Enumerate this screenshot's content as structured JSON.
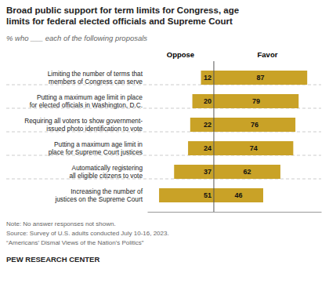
{
  "chart_data": {
    "type": "bar",
    "orientation": "horizontal",
    "title": "Broad public support for term limits for Congress, age\nlimits for federal elected officials and Supreme Court",
    "subtitle": "% who ___ each of the following proposals",
    "categories": [
      "Limiting the number of terms that\nmembers of Congress can serve",
      "Putting a maximum age limit in place\nfor elected officials in Washington, D.C.",
      "Requiring all voters to show government-\nissued photo identification to vote",
      "Putting a maximum age limit in\nplace for Supreme Court justices",
      "Automatically registering\nall eligible citizens to vote",
      "Increasing the number of\njustices on the Supreme Court"
    ],
    "series": [
      {
        "name": "Oppose",
        "color": "#C9A227",
        "values": [
          12,
          20,
          22,
          24,
          37,
          51
        ]
      },
      {
        "name": "Favor",
        "color": "#C9A227",
        "values": [
          87,
          79,
          76,
          74,
          62,
          46
        ]
      }
    ],
    "xlim": [
      -62,
      100
    ],
    "data_labels": true,
    "tick_labels": false,
    "grid": false,
    "annotations": [
      "Note: No answer responses not shown.",
      "Source: Survey of U.S. adults conducted July 10-16, 2023.",
      "“Americans’ Dismal Views of the Nation’s Politics”",
      "PEW RESEARCH CENTER"
    ]
  }
}
